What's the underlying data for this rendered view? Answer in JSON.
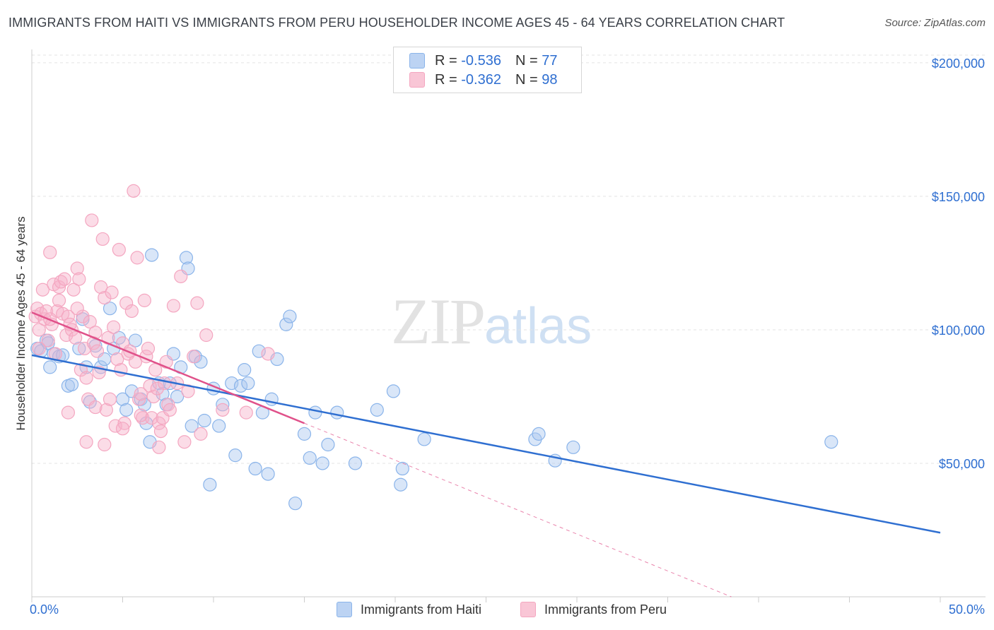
{
  "chart_data": {
    "type": "scatter",
    "title": "IMMIGRANTS FROM HAITI VS IMMIGRANTS FROM PERU HOUSEHOLDER INCOME AGES 45 - 64 YEARS CORRELATION CHART",
    "source": "Source: ZipAtlas.com",
    "watermark": {
      "zip": "ZIP",
      "atlas": "atlas"
    },
    "ylabel": "Householder Income Ages 45 - 64 years",
    "xlim": [
      0,
      50
    ],
    "ylim": [
      0,
      205000
    ],
    "x_tick_labels": [
      "0.0%",
      "50.0%"
    ],
    "y_ticks": [
      50000,
      100000,
      150000,
      200000
    ],
    "y_tick_labels": [
      "$50,000",
      "$100,000",
      "$150,000",
      "$200,000"
    ],
    "grid": true,
    "legend": {
      "placement": "top-center",
      "entries": [
        {
          "r_label": "R =",
          "r_value": "-0.536",
          "n_label": "N =",
          "n_value": "77"
        },
        {
          "r_label": "R =",
          "r_value": "-0.362",
          "n_label": "N =",
          "n_value": "98"
        }
      ]
    },
    "series": [
      {
        "name": "Immigrants from Haiti",
        "color": "#8ab4ea",
        "line_color": "#2f6fd1",
        "trend": {
          "x": [
            0,
            50
          ],
          "y": [
            90500,
            24000
          ]
        },
        "points": [
          [
            0.3,
            93000
          ],
          [
            0.5,
            92000
          ],
          [
            0.8,
            96000
          ],
          [
            1.0,
            86000
          ],
          [
            1.2,
            91000
          ],
          [
            1.5,
            90000
          ],
          [
            2.0,
            79000
          ],
          [
            2.2,
            79500
          ],
          [
            2.6,
            93000
          ],
          [
            3.0,
            86000
          ],
          [
            3.2,
            73000
          ],
          [
            3.5,
            94000
          ],
          [
            3.8,
            86000
          ],
          [
            4.0,
            89000
          ],
          [
            4.3,
            108000
          ],
          [
            4.5,
            93000
          ],
          [
            4.8,
            97000
          ],
          [
            5.0,
            74000
          ],
          [
            5.2,
            70000
          ],
          [
            5.5,
            77000
          ],
          [
            6.0,
            74000
          ],
          [
            6.2,
            72000
          ],
          [
            6.3,
            65000
          ],
          [
            6.5,
            58000
          ],
          [
            6.6,
            128000
          ],
          [
            7.0,
            80000
          ],
          [
            7.2,
            76000
          ],
          [
            7.4,
            72000
          ],
          [
            7.6,
            80000
          ],
          [
            7.8,
            91000
          ],
          [
            8.0,
            75000
          ],
          [
            8.2,
            86000
          ],
          [
            8.5,
            127000
          ],
          [
            8.6,
            123000
          ],
          [
            8.8,
            64000
          ],
          [
            9.0,
            90000
          ],
          [
            9.3,
            88000
          ],
          [
            9.5,
            66000
          ],
          [
            9.8,
            42000
          ],
          [
            10.0,
            78000
          ],
          [
            10.3,
            64000
          ],
          [
            10.5,
            72000
          ],
          [
            11.0,
            80000
          ],
          [
            11.2,
            53000
          ],
          [
            11.5,
            79000
          ],
          [
            11.7,
            85000
          ],
          [
            11.9,
            80000
          ],
          [
            12.3,
            48000
          ],
          [
            12.5,
            92000
          ],
          [
            12.7,
            69000
          ],
          [
            13.0,
            46000
          ],
          [
            13.2,
            74000
          ],
          [
            13.5,
            89000
          ],
          [
            14.0,
            102000
          ],
          [
            14.2,
            105000
          ],
          [
            14.5,
            35000
          ],
          [
            15.0,
            61000
          ],
          [
            15.3,
            52000
          ],
          [
            15.6,
            69000
          ],
          [
            16.0,
            50000
          ],
          [
            16.3,
            57000
          ],
          [
            16.8,
            69000
          ],
          [
            17.8,
            50000
          ],
          [
            19.0,
            70000
          ],
          [
            19.9,
            77000
          ],
          [
            20.3,
            42000
          ],
          [
            20.4,
            48000
          ],
          [
            21.6,
            59000
          ],
          [
            27.7,
            59000
          ],
          [
            27.9,
            61000
          ],
          [
            28.8,
            51000
          ],
          [
            29.8,
            56000
          ],
          [
            44.0,
            58000
          ],
          [
            0.9,
            95000
          ],
          [
            2.8,
            104000
          ],
          [
            1.7,
            90500
          ],
          [
            5.7,
            96000
          ]
        ]
      },
      {
        "name": "Immigrants from Peru",
        "color": "#f4a6c0",
        "line_color": "#e0518a",
        "trend": {
          "x": [
            0,
            15
          ],
          "y": [
            106500,
            65000
          ]
        },
        "trend_extension": {
          "x": [
            15,
            38.5
          ],
          "y": [
            65000,
            0
          ]
        },
        "points": [
          [
            0.2,
            105000
          ],
          [
            0.3,
            108000
          ],
          [
            0.4,
            100000
          ],
          [
            0.5,
            106000
          ],
          [
            0.6,
            115000
          ],
          [
            0.7,
            104000
          ],
          [
            0.8,
            107000
          ],
          [
            0.9,
            96000
          ],
          [
            1.0,
            129000
          ],
          [
            1.1,
            102000
          ],
          [
            1.2,
            117000
          ],
          [
            1.3,
            91000
          ],
          [
            1.4,
            107000
          ],
          [
            1.5,
            116000
          ],
          [
            1.6,
            118000
          ],
          [
            1.7,
            106000
          ],
          [
            1.8,
            119000
          ],
          [
            1.9,
            98000
          ],
          [
            2.0,
            105000
          ],
          [
            2.1,
            102000
          ],
          [
            2.2,
            100000
          ],
          [
            2.3,
            115000
          ],
          [
            2.4,
            97000
          ],
          [
            2.5,
            123000
          ],
          [
            2.6,
            119000
          ],
          [
            2.7,
            85000
          ],
          [
            2.8,
            105000
          ],
          [
            2.9,
            93000
          ],
          [
            3.0,
            82000
          ],
          [
            3.1,
            74000
          ],
          [
            3.2,
            103000
          ],
          [
            3.3,
            141000
          ],
          [
            3.4,
            95000
          ],
          [
            3.5,
            71000
          ],
          [
            3.6,
            92000
          ],
          [
            3.7,
            84000
          ],
          [
            3.8,
            116000
          ],
          [
            3.9,
            134000
          ],
          [
            4.0,
            112000
          ],
          [
            4.1,
            70000
          ],
          [
            4.2,
            97000
          ],
          [
            4.3,
            74000
          ],
          [
            4.4,
            114000
          ],
          [
            4.5,
            101000
          ],
          [
            4.6,
            64000
          ],
          [
            4.7,
            89000
          ],
          [
            4.8,
            130000
          ],
          [
            4.9,
            85000
          ],
          [
            5.0,
            95000
          ],
          [
            5.1,
            65000
          ],
          [
            5.2,
            110000
          ],
          [
            5.3,
            91000
          ],
          [
            5.4,
            92000
          ],
          [
            5.5,
            107000
          ],
          [
            5.6,
            152000
          ],
          [
            5.7,
            88000
          ],
          [
            5.8,
            127000
          ],
          [
            5.9,
            74000
          ],
          [
            6.0,
            76000
          ],
          [
            6.1,
            67000
          ],
          [
            6.2,
            111000
          ],
          [
            6.3,
            90000
          ],
          [
            6.4,
            93000
          ],
          [
            6.5,
            79000
          ],
          [
            6.6,
            67000
          ],
          [
            6.7,
            75000
          ],
          [
            6.8,
            85000
          ],
          [
            6.9,
            78000
          ],
          [
            7.0,
            65000
          ],
          [
            7.1,
            62000
          ],
          [
            7.2,
            67000
          ],
          [
            7.3,
            80000
          ],
          [
            7.4,
            88000
          ],
          [
            7.5,
            72000
          ],
          [
            7.6,
            70000
          ],
          [
            7.8,
            109000
          ],
          [
            8.0,
            80000
          ],
          [
            8.2,
            120000
          ],
          [
            8.4,
            58000
          ],
          [
            8.6,
            77000
          ],
          [
            8.9,
            90000
          ],
          [
            9.1,
            110000
          ],
          [
            9.3,
            61000
          ],
          [
            9.6,
            98000
          ],
          [
            10.5,
            70000
          ],
          [
            11.8,
            69000
          ],
          [
            13.0,
            91000
          ],
          [
            0.4,
            93000
          ],
          [
            1.0,
            104000
          ],
          [
            2.0,
            69000
          ],
          [
            3.0,
            58000
          ],
          [
            4.0,
            57000
          ],
          [
            5.0,
            63000
          ],
          [
            6.0,
            68000
          ],
          [
            7.0,
            56000
          ],
          [
            1.5,
            111000
          ],
          [
            2.5,
            108000
          ],
          [
            3.5,
            99000
          ]
        ]
      }
    ]
  }
}
